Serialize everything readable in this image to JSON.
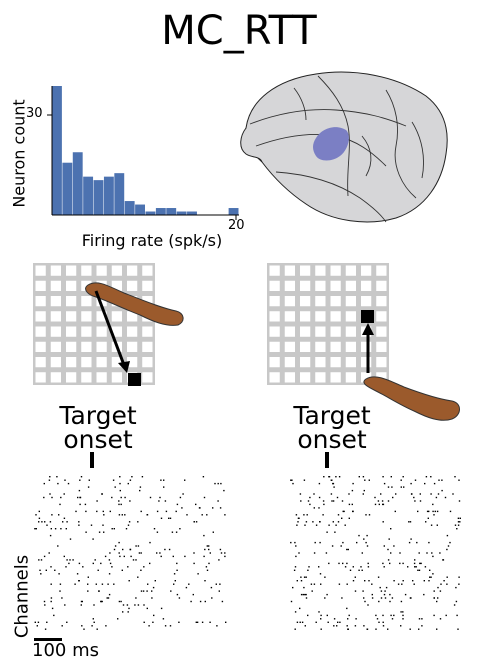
{
  "title": "MC_RTT",
  "histogram": {
    "ylabel": "Neuron count",
    "xlabel": "Firing rate (spk/s)",
    "y_tick": "30",
    "x_tick": "20",
    "bar_color": "#4c72b0"
  },
  "chart_data": {
    "type": "bar",
    "xlabel": "Firing rate (spk/s)",
    "ylabel": "Neuron count",
    "xlim": [
      0,
      20
    ],
    "ylim": [
      0,
      37
    ],
    "values": [
      37,
      15,
      18,
      11,
      10,
      11,
      12,
      4,
      3,
      1,
      2,
      2,
      1,
      1,
      0,
      0,
      0,
      2
    ]
  },
  "brain": {
    "region_color": "#7b7fc4"
  },
  "tasks": [
    {
      "label_line1": "Target",
      "label_line2": "onset"
    },
    {
      "label_line1": "Target",
      "label_line2": "onset"
    }
  ],
  "raster": {
    "ylabel": "Channels",
    "scale_bar": "100 ms"
  }
}
